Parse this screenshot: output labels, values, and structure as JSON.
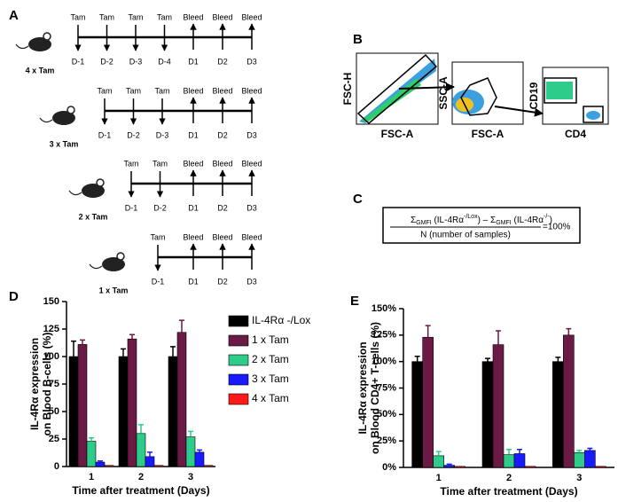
{
  "panel_labels": [
    "A",
    "B",
    "C",
    "D",
    "E"
  ],
  "timeline": {
    "dose_label": "Tam",
    "bleed_label": "Bleed",
    "rows": [
      {
        "label": "4 x Tam",
        "color": "#e0201b",
        "pre": [
          "D-1",
          "D-2",
          "D-3",
          "D-4"
        ],
        "post": [
          "D1",
          "D2",
          "D3"
        ]
      },
      {
        "label": "3 x Tam",
        "color": "#2233cc",
        "pre": [
          "D-1",
          "D-2",
          "D-3"
        ],
        "post": [
          "D1",
          "D2",
          "D3"
        ]
      },
      {
        "label": "2 x Tam",
        "color": "#1fae6a",
        "pre": [
          "D-1",
          "D-2"
        ],
        "post": [
          "D1",
          "D2",
          "D3"
        ]
      },
      {
        "label": "1 x Tam",
        "color": "#7a2a9a",
        "pre": [
          "D-1"
        ],
        "post": [
          "D1",
          "D2",
          "D3"
        ]
      }
    ]
  },
  "flow": {
    "plots": [
      {
        "x_label": "FSC-A",
        "y_label": "FSC-H"
      },
      {
        "x_label": "FSC-A",
        "y_label": "SSC-A"
      },
      {
        "x_label": "CD4",
        "y_label": "CD19"
      }
    ]
  },
  "formula": {
    "numerator": [
      "Σ",
      "GMFI",
      " (IL-4Rα",
      "-/Lox",
      ") – Σ",
      "GMFI",
      " (IL-4Rα",
      "-/-",
      ")"
    ],
    "denominator": "N (number of samples)",
    "result": "=100%"
  },
  "chart_data": [
    {
      "type": "bar",
      "xlabel": "Time after treatment (Days)",
      "ylabel": [
        "IL-4Rα expression",
        "on Blood B-cells (%)"
      ],
      "categories": [
        "1",
        "2",
        "3"
      ],
      "ylim": [
        0,
        150
      ],
      "yticks": [
        0,
        25,
        50,
        75,
        100,
        125,
        150
      ],
      "legend": true,
      "series": [
        {
          "name": "IL-4Rα -/Lox",
          "color": "#000000",
          "values": [
            100,
            100,
            100
          ],
          "errors": [
            14,
            7,
            9
          ]
        },
        {
          "name": "1 x Tam",
          "color": "#6b1a45",
          "values": [
            111,
            116,
            122
          ],
          "errors": [
            4,
            4,
            11
          ]
        },
        {
          "name": "2 x Tam",
          "color": "#2ecc8a",
          "values": [
            23,
            30,
            27
          ],
          "errors": [
            3,
            8,
            5
          ]
        },
        {
          "name": "3 x Tam",
          "color": "#1a1aff",
          "values": [
            4,
            9,
            13
          ],
          "errors": [
            1,
            4,
            2
          ]
        },
        {
          "name": "4 x Tam",
          "color": "#ff1a1a",
          "values": [
            1,
            1,
            1
          ],
          "errors": [
            0,
            0,
            0
          ]
        }
      ]
    },
    {
      "type": "bar",
      "xlabel": "Time after treatment (Days)",
      "ylabel": [
        "IL-4Rα expression",
        "on Blood CD4+ T-cells (%)"
      ],
      "categories": [
        "1",
        "2",
        "3"
      ],
      "ylim": [
        0,
        150
      ],
      "yticks": [
        {
          "value": 0,
          "label": "0%"
        },
        {
          "value": 25,
          "label": "25%"
        },
        {
          "value": 50,
          "label": "50%"
        },
        {
          "value": 75,
          "label": "75%"
        },
        {
          "value": 100,
          "label": "100%"
        },
        {
          "value": 125,
          "label": "125%"
        },
        {
          "value": 150,
          "label": "150%"
        }
      ],
      "legend": false,
      "series": [
        {
          "name": "IL-4Rα -/Lox",
          "color": "#000000",
          "values": [
            100,
            100,
            100
          ],
          "errors": [
            5,
            3,
            4
          ]
        },
        {
          "name": "1 x Tam",
          "color": "#6b1a45",
          "values": [
            123,
            116,
            125
          ],
          "errors": [
            11,
            13,
            6
          ]
        },
        {
          "name": "2 x Tam",
          "color": "#2ecc8a",
          "values": [
            11,
            12,
            14
          ],
          "errors": [
            4,
            5,
            2
          ]
        },
        {
          "name": "3 x Tam",
          "color": "#1a1aff",
          "values": [
            2,
            13,
            16
          ],
          "errors": [
            1,
            4,
            2
          ]
        },
        {
          "name": "4 x Tam",
          "color": "#ff1a1a",
          "values": [
            1,
            1,
            1
          ],
          "errors": [
            0,
            0,
            0
          ]
        }
      ]
    }
  ]
}
